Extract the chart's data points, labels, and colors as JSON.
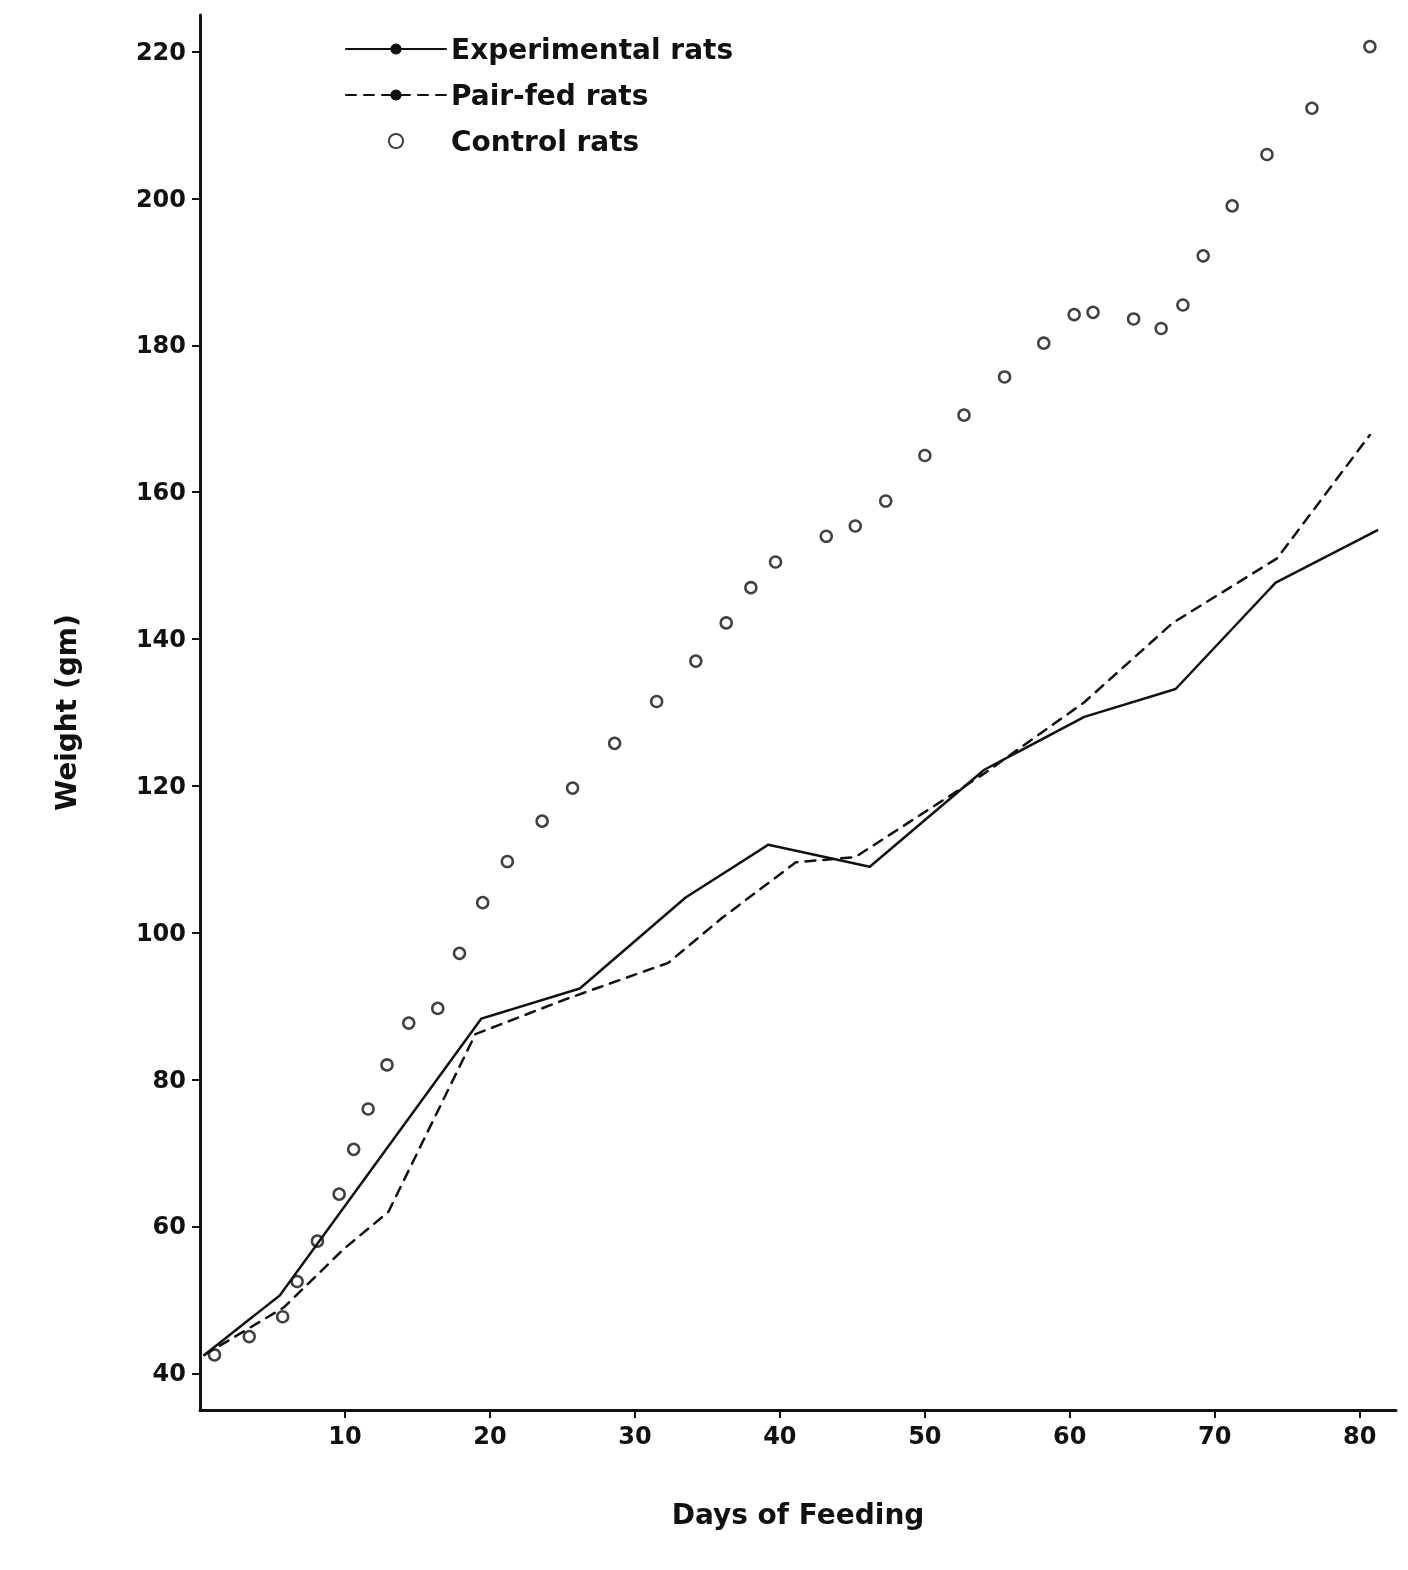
{
  "chart_data": {
    "type": "line",
    "xlabel": "Days of Feeding",
    "ylabel": "Weight (gm)",
    "xlim": [
      0,
      82.5
    ],
    "ylim": [
      35,
      225
    ],
    "xticks": [
      10,
      20,
      30,
      40,
      50,
      60,
      70,
      80
    ],
    "yticks": [
      40,
      60,
      80,
      100,
      120,
      140,
      160,
      180,
      200,
      220
    ],
    "grid": false,
    "legend": "top left",
    "series": [
      {
        "name": "Experimental rats",
        "color": "#111111",
        "line_style": "solid",
        "marker": "none",
        "x": [
          0.3,
          5.5,
          19.4,
          26.2,
          33.5,
          39.2,
          46.2,
          54.1,
          61,
          67.3,
          74.2,
          81.2
        ],
        "values": [
          42.5,
          50.6,
          88.3,
          92.4,
          104.8,
          112,
          109,
          122.2,
          129.4,
          133.2,
          147.7,
          154.8
        ]
      },
      {
        "name": "Pair-fed rats",
        "color": "#111111",
        "line_style": "dashed",
        "marker": "none",
        "x": [
          0.3,
          5.8,
          9.9,
          13,
          19,
          25.3,
          32.3,
          36,
          41.1,
          45.2,
          54.1,
          61,
          67.1,
          74.3,
          80.7
        ],
        "values": [
          42.5,
          49,
          56.9,
          62,
          86.2,
          91,
          95.9,
          102,
          109.6,
          110.3,
          121.7,
          131.4,
          142.2,
          151,
          167.8
        ]
      },
      {
        "name": "Control rats",
        "type": "scatter",
        "color": "#111111",
        "marker": "circle",
        "x": [
          1,
          3.4,
          5.7,
          6.7,
          8.1,
          9.6,
          10.6,
          11.6,
          12.9,
          14.4,
          16.4,
          17.9,
          19.5,
          21.2,
          23.6,
          25.7,
          28.6,
          31.5,
          34.2,
          36.3,
          38,
          39.7,
          43.2,
          45.2,
          47.3,
          50,
          52.7,
          55.5,
          58.2,
          60.3,
          61.6,
          64.4,
          66.3,
          67.8,
          69.2,
          71.2,
          73.6,
          76.7,
          80.7
        ],
        "values": [
          42.5,
          45,
          47.7,
          52.5,
          58,
          64.4,
          70.5,
          76,
          82,
          87.7,
          89.7,
          97.2,
          104.1,
          109.7,
          115.2,
          119.7,
          125.8,
          131.5,
          137,
          142.2,
          147,
          150.5,
          154,
          155.4,
          158.8,
          165,
          170.5,
          175.7,
          180.3,
          184.2,
          184.5,
          183.6,
          182.3,
          185.5,
          192.2,
          199,
          206,
          212.3,
          220.7
        ]
      }
    ]
  }
}
